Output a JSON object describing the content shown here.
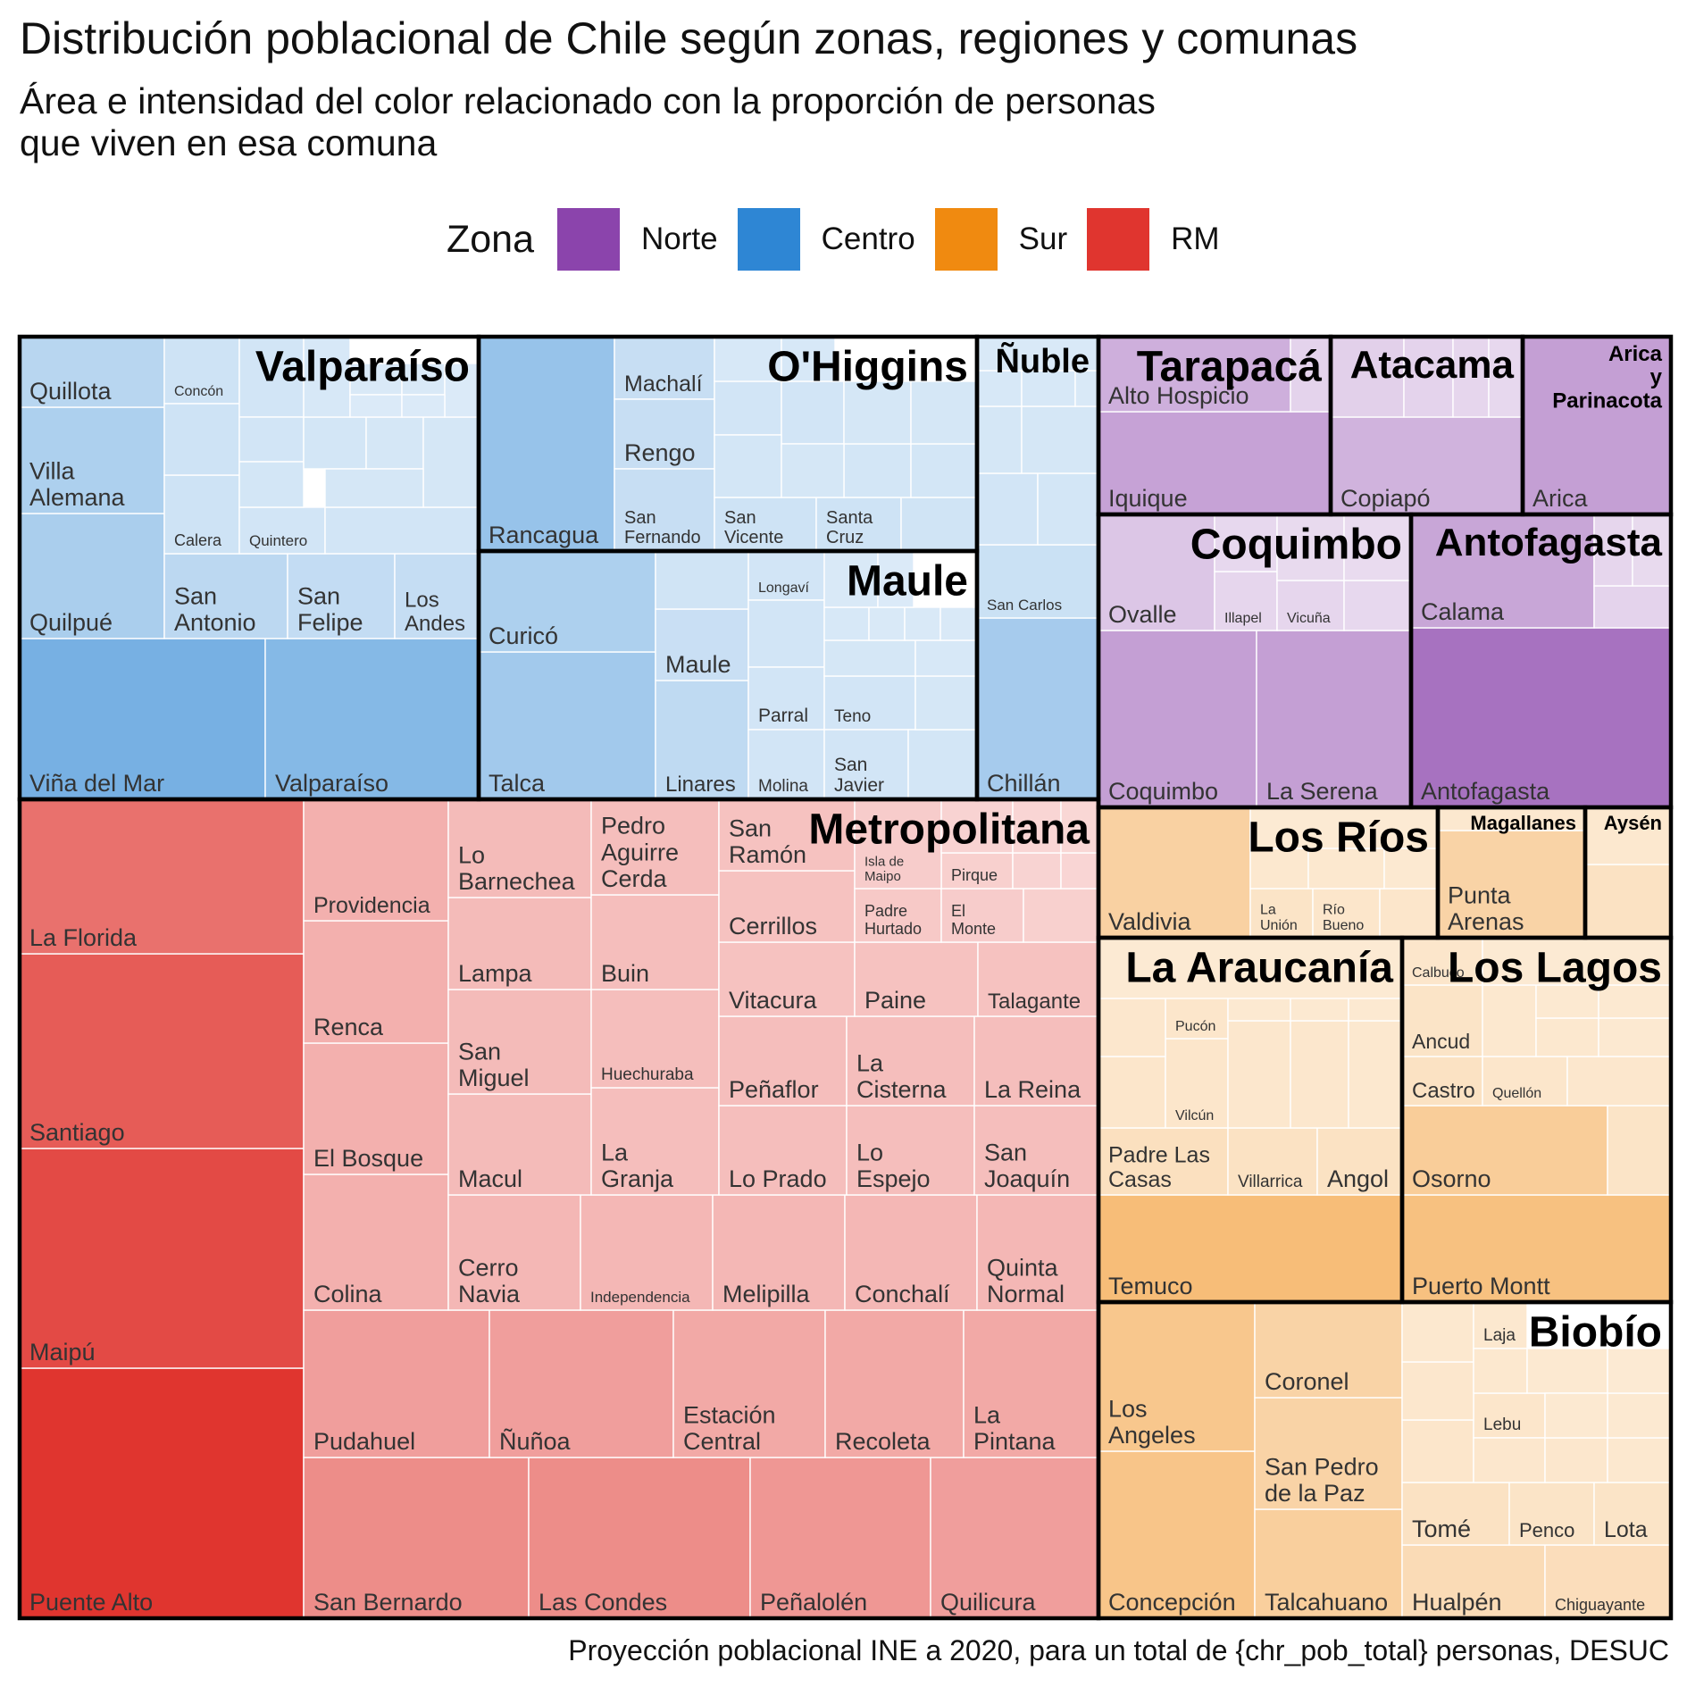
{
  "header": {
    "title": "Distribución poblacional de Chile según zonas, regiones y comunas",
    "subtitle_line1": "Área e intensidad del color relacionado con la proporción de personas",
    "subtitle_line2": "que viven en esa comuna"
  },
  "legend": {
    "title": "Zona",
    "items": [
      {
        "label": "Norte",
        "color": "#8B44AC"
      },
      {
        "label": "Centro",
        "color": "#2E86D4"
      },
      {
        "label": "Sur",
        "color": "#F08A10"
      },
      {
        "label": "RM",
        "color": "#E0352F"
      }
    ]
  },
  "caption": "Proyección poblacional INE a 2020, para un total de {chr_pob_total} personas, DESUC",
  "chart_data": {
    "type": "treemap",
    "hierarchy": [
      "zona",
      "region",
      "comuna"
    ],
    "value_metric": "share of total population (relative area)",
    "zones": [
      {
        "name": "Norte",
        "color": "#8B44AC",
        "regions": [
          {
            "name": "Tarapacá",
            "labeled_comunas": [
              {
                "name": "Iquique",
                "intensity": 0.42
              },
              {
                "name": "Alto Hospicio",
                "intensity": 0.34
              }
            ]
          },
          {
            "name": "Atacama",
            "labeled_comunas": [
              {
                "name": "Copiapó",
                "intensity": 0.32
              }
            ]
          },
          {
            "name": "Arica y Parinacota",
            "labeled_comunas": [
              {
                "name": "Arica",
                "intensity": 0.44
              }
            ]
          },
          {
            "name": "Coquimbo",
            "labeled_comunas": [
              {
                "name": "Coquimbo",
                "intensity": 0.44
              },
              {
                "name": "La Serena",
                "intensity": 0.44
              },
              {
                "name": "Ovalle",
                "intensity": 0.2
              },
              {
                "name": "Illapel",
                "intensity": 0.1
              },
              {
                "name": "Vicuña",
                "intensity": 0.1
              }
            ]
          },
          {
            "name": "Antofagasta",
            "labeled_comunas": [
              {
                "name": "Antofagasta",
                "intensity": 0.72
              },
              {
                "name": "Calama",
                "intensity": 0.4
              }
            ]
          }
        ]
      },
      {
        "name": "Centro",
        "color": "#2E86D4",
        "regions": [
          {
            "name": "Valparaíso",
            "labeled_comunas": [
              {
                "name": "Viña del Mar",
                "intensity": 0.6
              },
              {
                "name": "Valparaíso",
                "intensity": 0.52
              },
              {
                "name": "Quilpué",
                "intensity": 0.32
              },
              {
                "name": "Villa Alemana",
                "intensity": 0.3
              },
              {
                "name": "Quillota",
                "intensity": 0.24
              },
              {
                "name": "San Antonio",
                "intensity": 0.22
              },
              {
                "name": "San Felipe",
                "intensity": 0.18
              },
              {
                "name": "Los Andes",
                "intensity": 0.17
              },
              {
                "name": "Calera",
                "intensity": 0.12
              },
              {
                "name": "Quintero",
                "intensity": 0.1
              },
              {
                "name": "Concón",
                "intensity": 0.12
              }
            ]
          },
          {
            "name": "O'Higgins",
            "labeled_comunas": [
              {
                "name": "Rancagua",
                "intensity": 0.42
              },
              {
                "name": "Machalí",
                "intensity": 0.16
              },
              {
                "name": "Rengo",
                "intensity": 0.16
              },
              {
                "name": "San Fernando",
                "intensity": 0.16
              },
              {
                "name": "San Vicente",
                "intensity": 0.12
              },
              {
                "name": "Santa Cruz",
                "intensity": 0.12
              }
            ]
          },
          {
            "name": "Maule",
            "labeled_comunas": [
              {
                "name": "Talca",
                "intensity": 0.36
              },
              {
                "name": "Curicó",
                "intensity": 0.3
              },
              {
                "name": "Linares",
                "intensity": 0.2
              },
              {
                "name": "Maule",
                "intensity": 0.15
              },
              {
                "name": "Longaví",
                "intensity": 0.1
              },
              {
                "name": "Parral",
                "intensity": 0.1
              },
              {
                "name": "Teno",
                "intensity": 0.1
              },
              {
                "name": "Molina",
                "intensity": 0.1
              },
              {
                "name": "San Javier",
                "intensity": 0.1
              }
            ]
          },
          {
            "name": "Ñuble",
            "labeled_comunas": [
              {
                "name": "Chillán",
                "intensity": 0.34
              },
              {
                "name": "San Carlos",
                "intensity": 0.14
              }
            ]
          }
        ]
      },
      {
        "name": "RM",
        "color": "#E0352F",
        "regions": [
          {
            "name": "Metropolitana",
            "labeled_comunas": [
              {
                "name": "Puente Alto",
                "intensity": 1.0
              },
              {
                "name": "Maipú",
                "intensity": 0.88
              },
              {
                "name": "Santiago",
                "intensity": 0.78
              },
              {
                "name": "La Florida",
                "intensity": 0.66
              },
              {
                "name": "San Bernardo",
                "intensity": 0.5
              },
              {
                "name": "Las Condes",
                "intensity": 0.5
              },
              {
                "name": "Peñalolén",
                "intensity": 0.44
              },
              {
                "name": "Quilicura",
                "intensity": 0.4
              },
              {
                "name": "Pudahuel",
                "intensity": 0.4
              },
              {
                "name": "Ñuñoa",
                "intensity": 0.4
              },
              {
                "name": "Estación Central",
                "intensity": 0.34
              },
              {
                "name": "Recoleta",
                "intensity": 0.34
              },
              {
                "name": "La Pintana",
                "intensity": 0.34
              },
              {
                "name": "Providencia",
                "intensity": 0.3
              },
              {
                "name": "Renca",
                "intensity": 0.3
              },
              {
                "name": "El Bosque",
                "intensity": 0.3
              },
              {
                "name": "Colina",
                "intensity": 0.3
              },
              {
                "name": "Lo Barnechea",
                "intensity": 0.24
              },
              {
                "name": "Lampa",
                "intensity": 0.24
              },
              {
                "name": "San Miguel",
                "intensity": 0.24
              },
              {
                "name": "Macul",
                "intensity": 0.24
              },
              {
                "name": "Pedro Aguirre Cerda",
                "intensity": 0.22
              },
              {
                "name": "Buin",
                "intensity": 0.22
              },
              {
                "name": "Huechuraba",
                "intensity": 0.22
              },
              {
                "name": "La Granja",
                "intensity": 0.22
              },
              {
                "name": "Cerro Navia",
                "intensity": 0.26
              },
              {
                "name": "Independencia",
                "intensity": 0.26
              },
              {
                "name": "Melipilla",
                "intensity": 0.26
              },
              {
                "name": "Conchalí",
                "intensity": 0.26
              },
              {
                "name": "Quinta Normal",
                "intensity": 0.26
              },
              {
                "name": "San Ramón",
                "intensity": 0.2
              },
              {
                "name": "Cerrillos",
                "intensity": 0.2
              },
              {
                "name": "Vitacura",
                "intensity": 0.2
              },
              {
                "name": "Paine",
                "intensity": 0.2
              },
              {
                "name": "Talagante",
                "intensity": 0.2
              },
              {
                "name": "Peñaflor",
                "intensity": 0.22
              },
              {
                "name": "La Cisterna",
                "intensity": 0.22
              },
              {
                "name": "La Reina",
                "intensity": 0.22
              },
              {
                "name": "Lo Prado",
                "intensity": 0.22
              },
              {
                "name": "Lo Espejo",
                "intensity": 0.22
              },
              {
                "name": "San Joaquín",
                "intensity": 0.22
              },
              {
                "name": "Isla de Maipo",
                "intensity": 0.14
              },
              {
                "name": "Padre Hurtado",
                "intensity": 0.16
              },
              {
                "name": "Pirque",
                "intensity": 0.12
              },
              {
                "name": "El Monte",
                "intensity": 0.14
              }
            ]
          }
        ]
      },
      {
        "name": "Sur",
        "color": "#F08A10",
        "regions": [
          {
            "name": "Los Ríos",
            "labeled_comunas": [
              {
                "name": "Valdivia",
                "intensity": 0.3
              },
              {
                "name": "La Unión",
                "intensity": 0.12
              },
              {
                "name": "Río Bueno",
                "intensity": 0.1
              }
            ]
          },
          {
            "name": "Magallanes",
            "labeled_comunas": [
              {
                "name": "Punta Arenas",
                "intensity": 0.28
              }
            ]
          },
          {
            "name": "Aysén",
            "labeled_comunas": []
          },
          {
            "name": "La Araucanía",
            "labeled_comunas": [
              {
                "name": "Temuco",
                "intensity": 0.5
              },
              {
                "name": "Padre Las Casas",
                "intensity": 0.16
              },
              {
                "name": "Villarrica",
                "intensity": 0.14
              },
              {
                "name": "Angol",
                "intensity": 0.14
              },
              {
                "name": "Pucón",
                "intensity": 0.1
              },
              {
                "name": "Vilcún",
                "intensity": 0.1
              }
            ]
          },
          {
            "name": "Los Lagos",
            "labeled_comunas": [
              {
                "name": "Puerto Montt",
                "intensity": 0.46
              },
              {
                "name": "Osorno",
                "intensity": 0.34
              },
              {
                "name": "Castro",
                "intensity": 0.14
              },
              {
                "name": "Ancud",
                "intensity": 0.12
              },
              {
                "name": "Quellón",
                "intensity": 0.1
              },
              {
                "name": "Calbuco",
                "intensity": 0.1
              }
            ]
          },
          {
            "name": "Biobío",
            "labeled_comunas": [
              {
                "name": "Concepción",
                "intensity": 0.42
              },
              {
                "name": "Los Angeles",
                "intensity": 0.4
              },
              {
                "name": "Talcahuano",
                "intensity": 0.32
              },
              {
                "name": "Coronel",
                "intensity": 0.28
              },
              {
                "name": "San Pedro de la Paz",
                "intensity": 0.28
              },
              {
                "name": "Hualpén",
                "intensity": 0.2
              },
              {
                "name": "Chiguayante",
                "intensity": 0.18
              },
              {
                "name": "Tomé",
                "intensity": 0.14
              },
              {
                "name": "Penco",
                "intensity": 0.12
              },
              {
                "name": "Lota",
                "intensity": 0.12
              },
              {
                "name": "Lebu",
                "intensity": 0.1
              },
              {
                "name": "Laja",
                "intensity": 0.08
              }
            ]
          }
        ]
      }
    ]
  }
}
